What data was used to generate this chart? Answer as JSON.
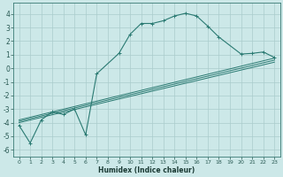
{
  "xlabel": "Humidex (Indice chaleur)",
  "bg_color": "#cce8e8",
  "grid_color": "#aacccc",
  "line_color": "#2a7a72",
  "xlim": [
    -0.5,
    23.5
  ],
  "ylim": [
    -6.5,
    4.8
  ],
  "xticks": [
    0,
    1,
    2,
    3,
    4,
    5,
    6,
    7,
    8,
    9,
    10,
    11,
    12,
    13,
    14,
    15,
    16,
    17,
    18,
    19,
    20,
    21,
    22,
    23
  ],
  "yticks": [
    -6,
    -5,
    -4,
    -3,
    -2,
    -1,
    0,
    1,
    2,
    3,
    4
  ],
  "series_main": {
    "x": [
      0,
      1,
      2,
      3,
      4,
      5,
      6,
      7,
      9,
      10,
      11,
      12,
      13,
      14,
      15,
      16,
      17,
      18,
      20,
      21,
      22,
      23
    ],
    "y": [
      -4.2,
      -5.5,
      -3.8,
      -3.2,
      -3.4,
      -3.0,
      -4.9,
      -0.4,
      1.1,
      2.5,
      3.3,
      3.3,
      3.5,
      3.85,
      4.05,
      3.85,
      3.1,
      2.3,
      1.05,
      1.1,
      1.2,
      0.8
    ]
  },
  "series_linear": [
    {
      "x": [
        0,
        23
      ],
      "y": [
        -3.8,
        0.75
      ]
    },
    {
      "x": [
        0,
        23
      ],
      "y": [
        -3.9,
        0.6
      ]
    },
    {
      "x": [
        0,
        23
      ],
      "y": [
        -4.0,
        0.45
      ]
    }
  ]
}
